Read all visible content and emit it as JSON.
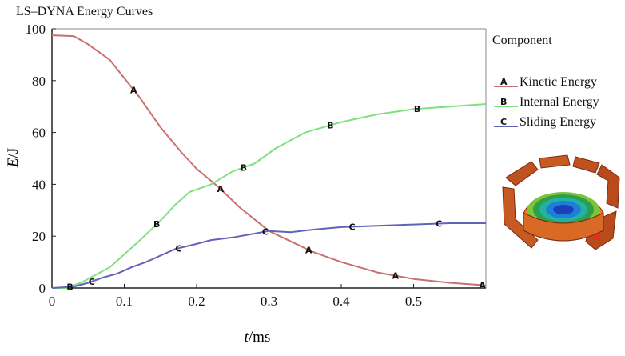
{
  "chart_data": {
    "type": "line",
    "title": "LS–DYNA Energy Curves",
    "xlabel_italic": "t",
    "xlabel_unit": "/ms",
    "ylabel_italic": "E",
    "ylabel_unit": "/J",
    "xlim": [
      0,
      0.6
    ],
    "ylim": [
      0,
      100
    ],
    "x_ticks": [
      0,
      0.1,
      0.2,
      0.3,
      0.4,
      0.5
    ],
    "x_tick_labels": [
      "0",
      "0.1",
      "0.2",
      "0.3",
      "0.4",
      "0.5"
    ],
    "y_ticks": [
      0,
      20,
      40,
      60,
      80,
      100
    ],
    "grid": true,
    "legend_title": "Component",
    "legend_position": "right",
    "series": [
      {
        "marker": "A",
        "name": "Kinetic Energy",
        "color": "#c8706f",
        "x": [
          0,
          0.03,
          0.05,
          0.08,
          0.1,
          0.12,
          0.15,
          0.18,
          0.2,
          0.23,
          0.26,
          0.3,
          0.33,
          0.36,
          0.4,
          0.45,
          0.5,
          0.55,
          0.6
        ],
        "y": [
          97.5,
          97.2,
          94,
          88,
          81,
          74,
          62,
          52,
          46,
          39,
          31,
          22,
          18,
          14,
          10,
          6,
          3.5,
          2,
          1
        ],
        "marker_x": [
          0.113,
          0.233,
          0.355,
          0.475,
          0.595
        ]
      },
      {
        "marker": "B",
        "name": "Internal Energy",
        "color": "#80e080",
        "x": [
          0,
          0.02,
          0.04,
          0.06,
          0.08,
          0.1,
          0.12,
          0.15,
          0.17,
          0.19,
          0.22,
          0.25,
          0.28,
          0.31,
          0.35,
          0.4,
          0.45,
          0.5,
          0.55,
          0.6
        ],
        "y": [
          0,
          0,
          2,
          5,
          8,
          13,
          18,
          26,
          32,
          37,
          40,
          45,
          48,
          54,
          60,
          64,
          67,
          69,
          70,
          71
        ],
        "marker_x": [
          0.025,
          0.145,
          0.265,
          0.385,
          0.505
        ]
      },
      {
        "marker": "C",
        "name": "Sliding Energy",
        "color": "#6262b8",
        "x": [
          0,
          0.03,
          0.05,
          0.07,
          0.09,
          0.11,
          0.13,
          0.15,
          0.17,
          0.2,
          0.22,
          0.25,
          0.28,
          0.3,
          0.33,
          0.36,
          0.4,
          0.45,
          0.5,
          0.55,
          0.6
        ],
        "y": [
          0,
          0.5,
          2,
          4,
          5.5,
          8,
          10,
          12.5,
          15,
          17,
          18.5,
          19.5,
          21,
          22,
          21.5,
          22.5,
          23.5,
          24,
          24.5,
          25,
          25
        ],
        "marker_x": [
          0.055,
          0.175,
          0.295,
          0.415,
          0.535
        ]
      }
    ]
  },
  "figure": {
    "model_image": "fem-mesh-model",
    "model_colors": [
      "#c0521f",
      "#e8802c",
      "#2d9e4a",
      "#1d55c8",
      "#7ec33a",
      "#e85030"
    ]
  }
}
